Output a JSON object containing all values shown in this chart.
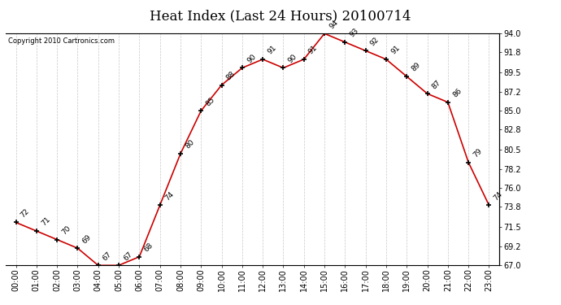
{
  "title": "Heat Index (Last 24 Hours) 20100714",
  "copyright": "Copyright 2010 Cartronics.com",
  "hours": [
    "00:00",
    "01:00",
    "02:00",
    "03:00",
    "04:00",
    "05:00",
    "06:00",
    "07:00",
    "08:00",
    "09:00",
    "10:00",
    "11:00",
    "12:00",
    "13:00",
    "14:00",
    "15:00",
    "16:00",
    "17:00",
    "18:00",
    "19:00",
    "20:00",
    "21:00",
    "22:00",
    "23:00"
  ],
  "values": [
    72,
    71,
    70,
    69,
    67,
    67,
    68,
    74,
    80,
    85,
    88,
    90,
    91,
    90,
    91,
    94,
    93,
    92,
    91,
    89,
    87,
    86,
    79,
    74
  ],
  "ylim_min": 67.0,
  "ylim_max": 94.0,
  "yticks": [
    67.0,
    69.2,
    71.5,
    73.8,
    76.0,
    78.2,
    80.5,
    82.8,
    85.0,
    87.2,
    89.5,
    91.8,
    94.0
  ],
  "line_color": "#cc0000",
  "marker_color": "#000000",
  "bg_color": "#ffffff",
  "grid_color": "#c8c8c8",
  "title_fontsize": 12,
  "label_fontsize": 7,
  "annot_fontsize": 6.5,
  "copyright_fontsize": 6
}
